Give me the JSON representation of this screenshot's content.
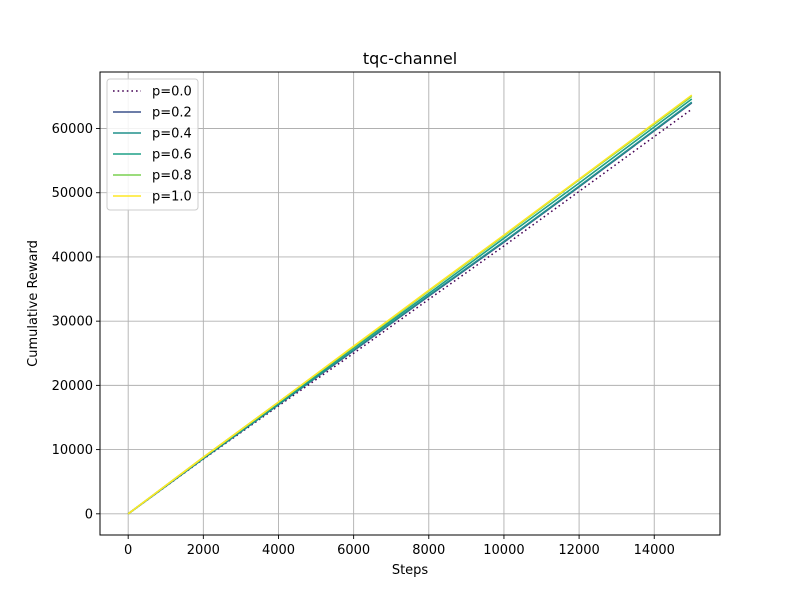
{
  "chart_data": {
    "type": "line",
    "title": "tqc-channel",
    "xlabel": "Steps",
    "ylabel": "Cumulative Reward",
    "xlim": [
      -750,
      15750
    ],
    "ylim": [
      -3300,
      68800
    ],
    "xticks": [
      0,
      2000,
      4000,
      6000,
      8000,
      10000,
      12000,
      14000
    ],
    "xtick_labels": [
      "0",
      "2000",
      "4000",
      "6000",
      "8000",
      "10000",
      "12000",
      "14000"
    ],
    "yticks": [
      0,
      10000,
      20000,
      30000,
      40000,
      50000,
      60000
    ],
    "ytick_labels": [
      "0",
      "10000",
      "20000",
      "30000",
      "40000",
      "50000",
      "60000"
    ],
    "grid": true,
    "legend_position": "upper-left",
    "series": [
      {
        "name": "p=0.0",
        "color": "#440154",
        "style": "dotted",
        "x": [
          0,
          2000,
          4000,
          6000,
          8000,
          10000,
          12000,
          15000
        ],
        "y": [
          0,
          8500,
          16800,
          25000,
          33400,
          41700,
          50200,
          63000
        ]
      },
      {
        "name": "p=0.2",
        "color": "#3b528b",
        "style": "solid",
        "x": [
          0,
          2000,
          4000,
          6000,
          8000,
          10000,
          12000,
          15000
        ],
        "y": [
          0,
          8600,
          17000,
          25400,
          33900,
          42300,
          50900,
          64000
        ]
      },
      {
        "name": "p=0.4",
        "color": "#21918c",
        "style": "solid",
        "x": [
          0,
          2000,
          4000,
          6000,
          8000,
          10000,
          12000,
          15000
        ],
        "y": [
          0,
          8600,
          17000,
          25500,
          34000,
          42400,
          51000,
          64100
        ]
      },
      {
        "name": "p=0.6",
        "color": "#1fa187",
        "style": "solid",
        "x": [
          0,
          2000,
          4000,
          6000,
          8000,
          10000,
          12000,
          15000
        ],
        "y": [
          0,
          8700,
          17200,
          25800,
          34300,
          42900,
          51500,
          64600
        ]
      },
      {
        "name": "p=0.8",
        "color": "#7ad151",
        "style": "solid",
        "x": [
          0,
          2000,
          4000,
          6000,
          8000,
          10000,
          12000,
          15000
        ],
        "y": [
          0,
          8800,
          17400,
          26000,
          34700,
          43300,
          52000,
          65000
        ]
      },
      {
        "name": "p=1.0",
        "color": "#fde725",
        "style": "solid",
        "x": [
          0,
          2000,
          4000,
          6000,
          8000,
          10000,
          12000,
          15000
        ],
        "y": [
          0,
          8800,
          17400,
          26100,
          34800,
          43400,
          52100,
          65200
        ]
      }
    ]
  }
}
